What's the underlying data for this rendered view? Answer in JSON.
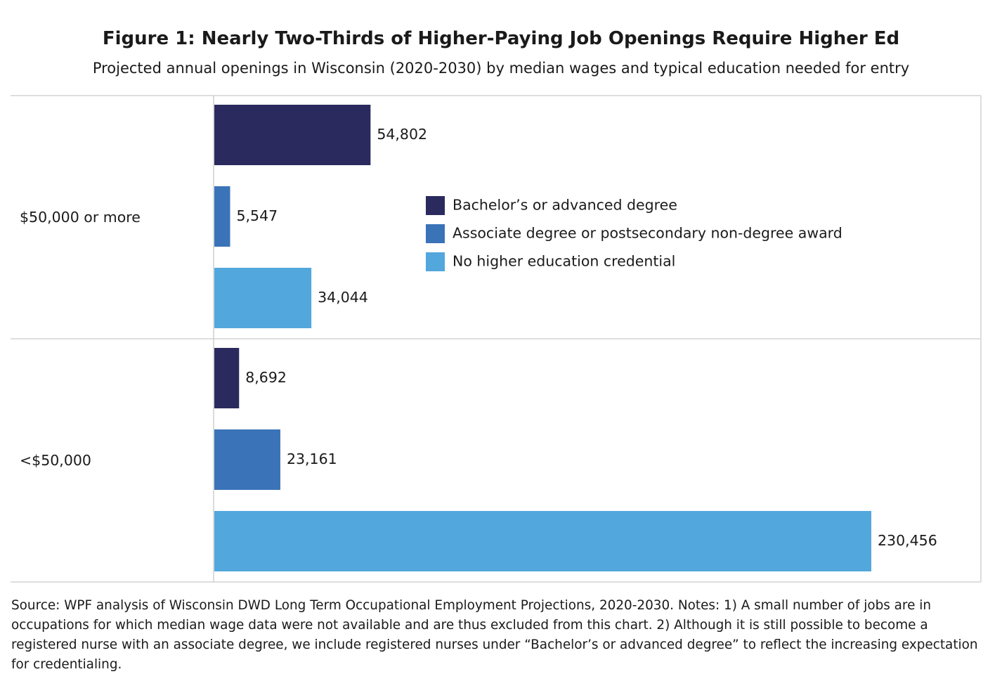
{
  "chart_data": {
    "type": "bar",
    "orientation": "horizontal",
    "title": "Figure 1: Nearly Two-Thirds of Higher-Paying Job Openings Require Higher Ed",
    "subtitle": "Projected annual openings in Wisconsin (2020-2030) by median wages and typical education needed for entry",
    "categories": [
      "$50,000 or more",
      "<$50,000"
    ],
    "series": [
      {
        "name": "Bachelor’s or advanced degree",
        "color": "#2a2a5e",
        "values": [
          54802,
          8692
        ],
        "labels": [
          "54,802",
          "8,692"
        ]
      },
      {
        "name": "Associate degree or postsecondary non-degree award",
        "color": "#3a73b8",
        "values": [
          5547,
          23161
        ],
        "labels": [
          "5,547",
          "23,161"
        ]
      },
      {
        "name": "No higher education credential",
        "color": "#52a7dc",
        "values": [
          34044,
          230456
        ],
        "labels": [
          "34,044",
          "230,456"
        ]
      }
    ],
    "xlim": [
      0,
      230456
    ],
    "legend": "center",
    "grid": false,
    "source": "Source: WPF analysis of Wisconsin DWD Long Term Occupational Employment Projections, 2020-2030. Notes: 1) A small number of jobs are in occupations for which median wage data were not available and are thus excluded from this chart. 2) Although it is still possible to become a registered nurse with an associate degree, we include registered nurses under “Bachelor’s or advanced degree” to reflect the increasing expectation for credentialing."
  }
}
